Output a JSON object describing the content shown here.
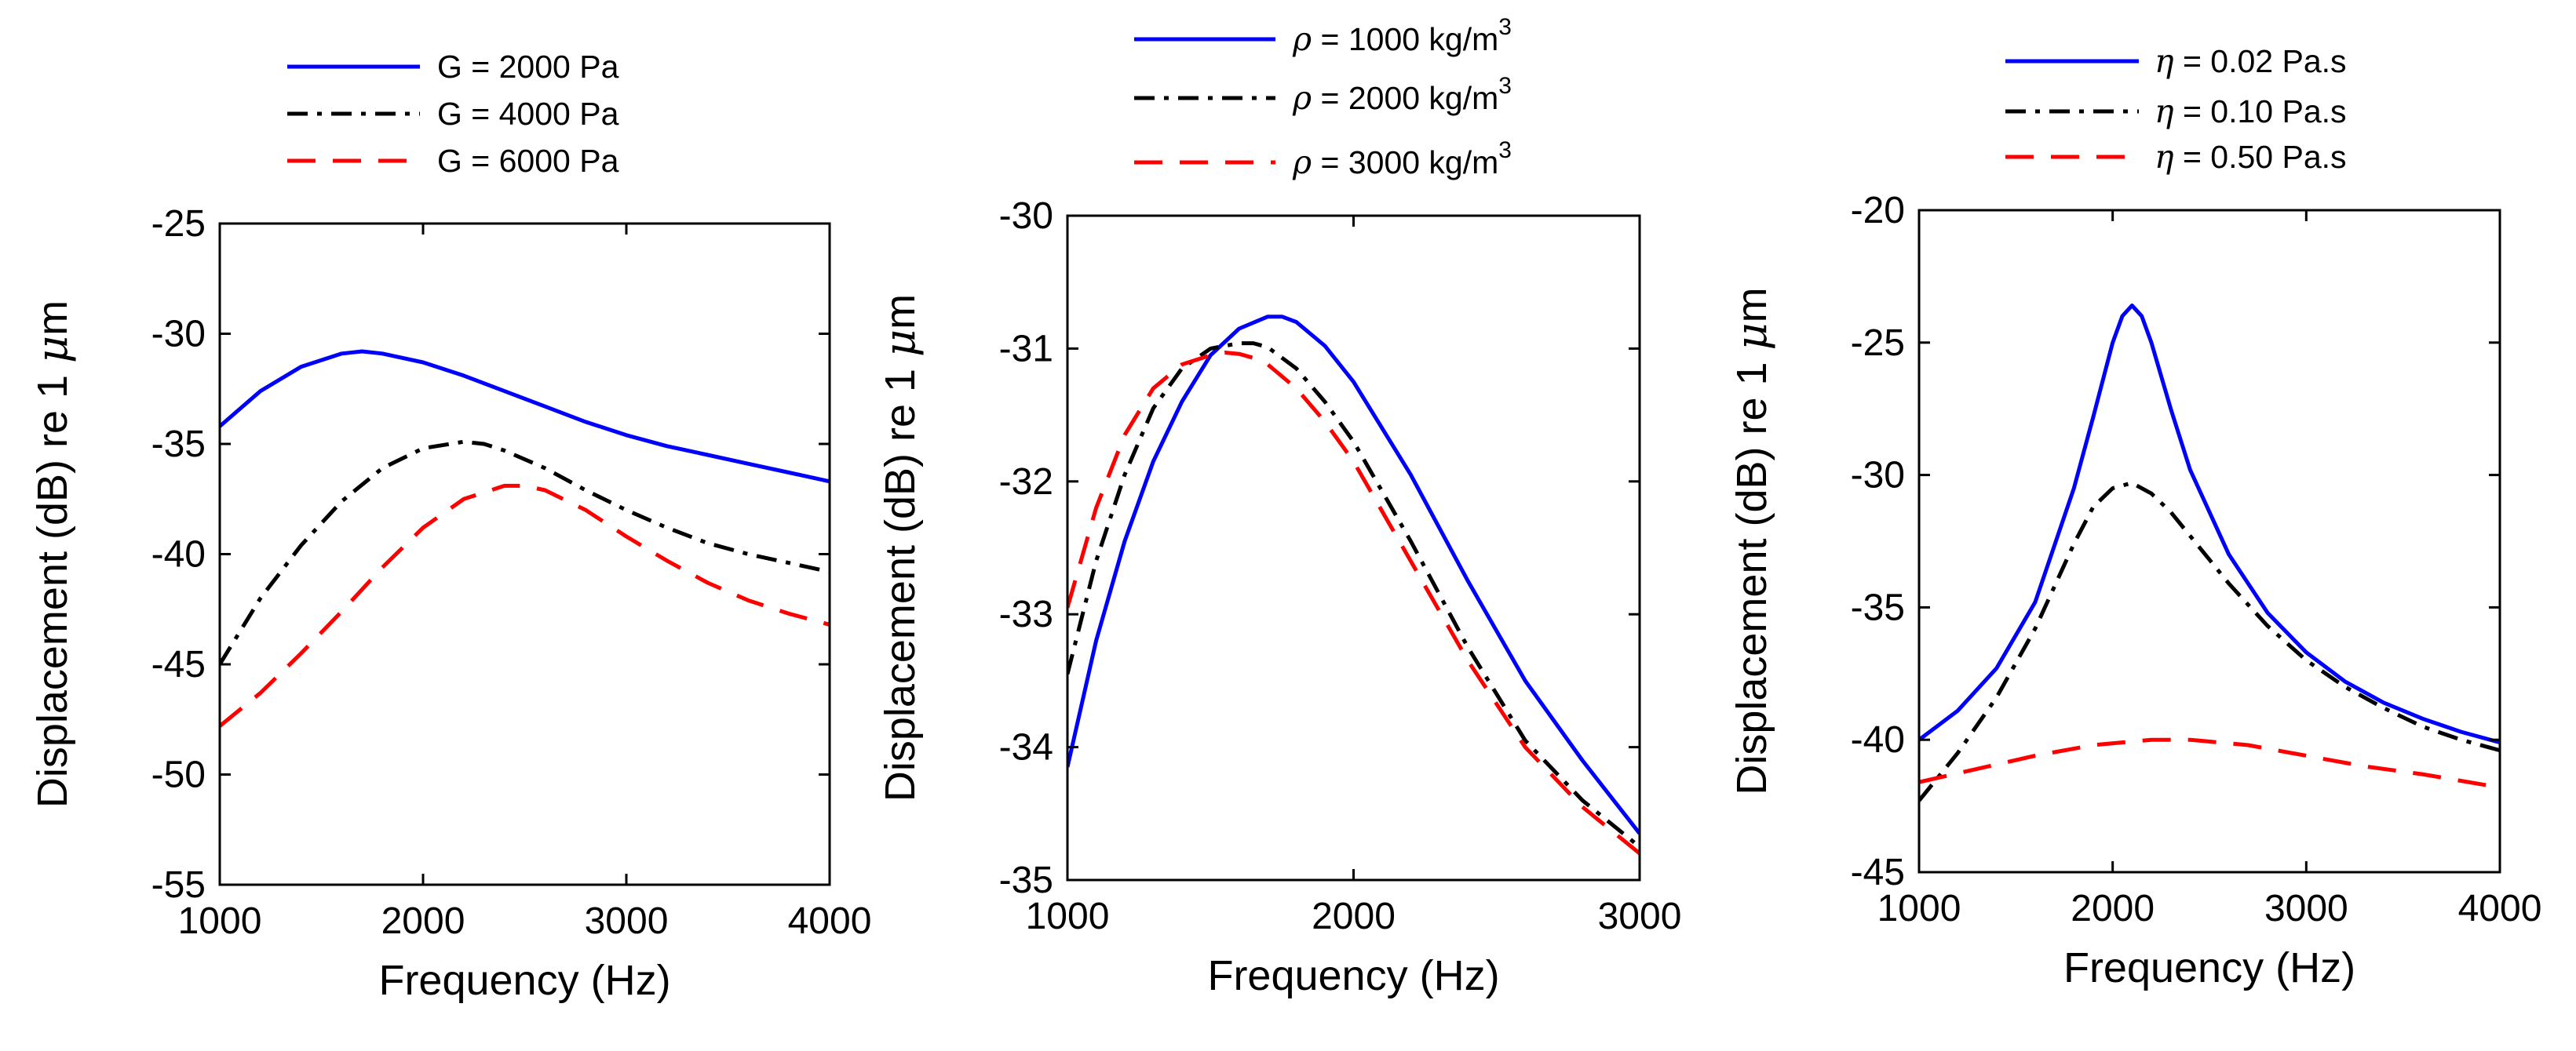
{
  "colors": {
    "blue": "#0000ff",
    "black": "#000000",
    "red": "#ff0000"
  },
  "chart_data": [
    {
      "type": "line",
      "title": "",
      "xlabel": "Frequency (Hz)",
      "ylabel": "Displacement (dB) re 1",
      "ylabel_unit_symbol": "μ",
      "ylabel_unit": "m",
      "xlim": [
        1000,
        4000
      ],
      "ylim": [
        -55,
        -25
      ],
      "xticks": [
        "1000",
        "2000",
        "3000",
        "4000"
      ],
      "yticks": [
        "-25",
        "-30",
        "-35",
        "-40",
        "-45",
        "-50",
        "-55"
      ],
      "legend_position": "top-outside",
      "series": [
        {
          "name": "G = 2000 Pa",
          "legend_param": "G",
          "legend_value": "= 2000 Pa",
          "color": "#0000ff",
          "style": "solid",
          "x": [
            1000,
            1200,
            1400,
            1600,
            1700,
            1800,
            2000,
            2200,
            2400,
            2600,
            2800,
            3000,
            3200,
            3400,
            3600,
            3800,
            4000
          ],
          "y": [
            -34.2,
            -32.6,
            -31.5,
            -30.9,
            -30.8,
            -30.9,
            -31.3,
            -31.9,
            -32.6,
            -33.3,
            -34.0,
            -34.6,
            -35.1,
            -35.5,
            -35.9,
            -36.3,
            -36.7
          ]
        },
        {
          "name": "G = 4000 Pa",
          "legend_param": "G",
          "legend_value": "= 4000 Pa",
          "color": "#000000",
          "style": "dashdot",
          "x": [
            1000,
            1200,
            1400,
            1600,
            1800,
            2000,
            2200,
            2300,
            2400,
            2600,
            2800,
            3000,
            3200,
            3400,
            3600,
            3800,
            4000
          ],
          "y": [
            -45.0,
            -42.0,
            -39.6,
            -37.6,
            -36.1,
            -35.2,
            -34.9,
            -35.0,
            -35.3,
            -36.1,
            -37.1,
            -38.0,
            -38.8,
            -39.5,
            -40.0,
            -40.4,
            -40.8
          ]
        },
        {
          "name": "G = 6000 Pa",
          "legend_param": "G",
          "legend_value": "= 6000 Pa",
          "color": "#ff0000",
          "style": "dashed",
          "x": [
            1000,
            1200,
            1400,
            1600,
            1800,
            2000,
            2200,
            2400,
            2500,
            2600,
            2800,
            3000,
            3200,
            3400,
            3600,
            3800,
            4000
          ],
          "y": [
            -47.8,
            -46.3,
            -44.5,
            -42.6,
            -40.6,
            -38.8,
            -37.5,
            -36.9,
            -36.9,
            -37.1,
            -38.0,
            -39.2,
            -40.3,
            -41.3,
            -42.1,
            -42.7,
            -43.2
          ]
        }
      ]
    },
    {
      "type": "line",
      "title": "",
      "xlabel": "Frequency (Hz)",
      "ylabel": "Displacement (dB) re 1",
      "ylabel_unit_symbol": "μ",
      "ylabel_unit": "m",
      "xlim": [
        1000,
        3000
      ],
      "ylim": [
        -35,
        -30
      ],
      "xticks": [
        "1000",
        "2000",
        "3000"
      ],
      "yticks": [
        "-30",
        "-31",
        "-32",
        "-33",
        "-34",
        "-35"
      ],
      "legend_position": "top-outside",
      "series": [
        {
          "name": "ρ = 1000 kg/m3",
          "legend_param": "ρ",
          "legend_value": "= 1000 kg/m",
          "legend_sup": "3",
          "color": "#0000ff",
          "style": "solid",
          "x": [
            1000,
            1100,
            1200,
            1300,
            1400,
            1500,
            1600,
            1700,
            1750,
            1800,
            1900,
            2000,
            2200,
            2400,
            2600,
            2800,
            3000
          ],
          "y": [
            -34.15,
            -33.2,
            -32.45,
            -31.85,
            -31.4,
            -31.05,
            -30.85,
            -30.76,
            -30.76,
            -30.8,
            -30.98,
            -31.25,
            -31.95,
            -32.75,
            -33.5,
            -34.1,
            -34.65
          ]
        },
        {
          "name": "ρ = 2000 kg/m3",
          "legend_param": "ρ",
          "legend_value": "= 2000 kg/m",
          "legend_sup": "3",
          "color": "#000000",
          "style": "dashdot",
          "x": [
            1000,
            1100,
            1200,
            1300,
            1400,
            1500,
            1600,
            1650,
            1700,
            1800,
            1900,
            2000,
            2200,
            2400,
            2600,
            2800,
            3000
          ],
          "y": [
            -33.45,
            -32.6,
            -31.95,
            -31.45,
            -31.15,
            -31.0,
            -30.96,
            -30.96,
            -30.99,
            -31.15,
            -31.4,
            -31.7,
            -32.45,
            -33.25,
            -33.95,
            -34.4,
            -34.75
          ]
        },
        {
          "name": "ρ = 3000 kg/m3",
          "legend_param": "ρ",
          "legend_value": "= 3000 kg/m",
          "legend_sup": "3",
          "color": "#ff0000",
          "style": "dashed",
          "x": [
            1000,
            1100,
            1200,
            1300,
            1400,
            1500,
            1550,
            1600,
            1650,
            1700,
            1800,
            1900,
            2000,
            2200,
            2400,
            2600,
            2800,
            3000
          ],
          "y": [
            -32.95,
            -32.2,
            -31.65,
            -31.3,
            -31.12,
            -31.05,
            -31.03,
            -31.04,
            -31.07,
            -31.12,
            -31.3,
            -31.55,
            -31.85,
            -32.6,
            -33.35,
            -34.0,
            -34.45,
            -34.8
          ]
        }
      ]
    },
    {
      "type": "line",
      "title": "",
      "xlabel": "Frequency (Hz)",
      "ylabel": "Displacement (dB) re 1",
      "ylabel_unit_symbol": "μ",
      "ylabel_unit": "m",
      "xlim": [
        1000,
        4000
      ],
      "ylim": [
        -45,
        -20
      ],
      "xticks": [
        "1000",
        "2000",
        "3000",
        "4000"
      ],
      "yticks": [
        "-20",
        "-25",
        "-30",
        "-35",
        "-40",
        "-45"
      ],
      "legend_position": "top-outside",
      "series": [
        {
          "name": "η = 0.02 Pa.s",
          "legend_param": "η",
          "legend_value": "= 0.02 Pa.s",
          "color": "#0000ff",
          "style": "solid",
          "x": [
            1000,
            1200,
            1400,
            1600,
            1800,
            1900,
            2000,
            2050,
            2100,
            2150,
            2200,
            2300,
            2400,
            2600,
            2800,
            3000,
            3200,
            3400,
            3600,
            3800,
            4000
          ],
          "y": [
            -40.0,
            -38.9,
            -37.3,
            -34.8,
            -30.5,
            -27.8,
            -25.0,
            -24.0,
            -23.6,
            -24.0,
            -25.0,
            -27.5,
            -29.8,
            -33.0,
            -35.2,
            -36.7,
            -37.8,
            -38.6,
            -39.2,
            -39.7,
            -40.1
          ]
        },
        {
          "name": "η = 0.10 Pa.s",
          "legend_param": "η",
          "legend_value": "= 0.10 Pa.s",
          "color": "#000000",
          "style": "dashdot",
          "x": [
            1000,
            1200,
            1400,
            1600,
            1800,
            1900,
            2000,
            2100,
            2200,
            2300,
            2400,
            2600,
            2800,
            3000,
            3200,
            3400,
            3600,
            3800,
            4000
          ],
          "y": [
            -42.3,
            -40.5,
            -38.4,
            -35.8,
            -32.6,
            -31.2,
            -30.5,
            -30.3,
            -30.7,
            -31.4,
            -32.3,
            -34.1,
            -35.7,
            -37.0,
            -38.0,
            -38.8,
            -39.5,
            -40.0,
            -40.4
          ]
        },
        {
          "name": "η = 0.50 Pa.s",
          "legend_param": "η",
          "legend_value": "= 0.50 Pa.s",
          "color": "#ff0000",
          "style": "dashed",
          "x": [
            1000,
            1300,
            1600,
            1900,
            2200,
            2400,
            2700,
            3000,
            3300,
            3600,
            4000
          ],
          "y": [
            -41.6,
            -41.1,
            -40.6,
            -40.2,
            -40.0,
            -40.0,
            -40.2,
            -40.6,
            -41.0,
            -41.3,
            -41.8
          ]
        }
      ]
    }
  ]
}
